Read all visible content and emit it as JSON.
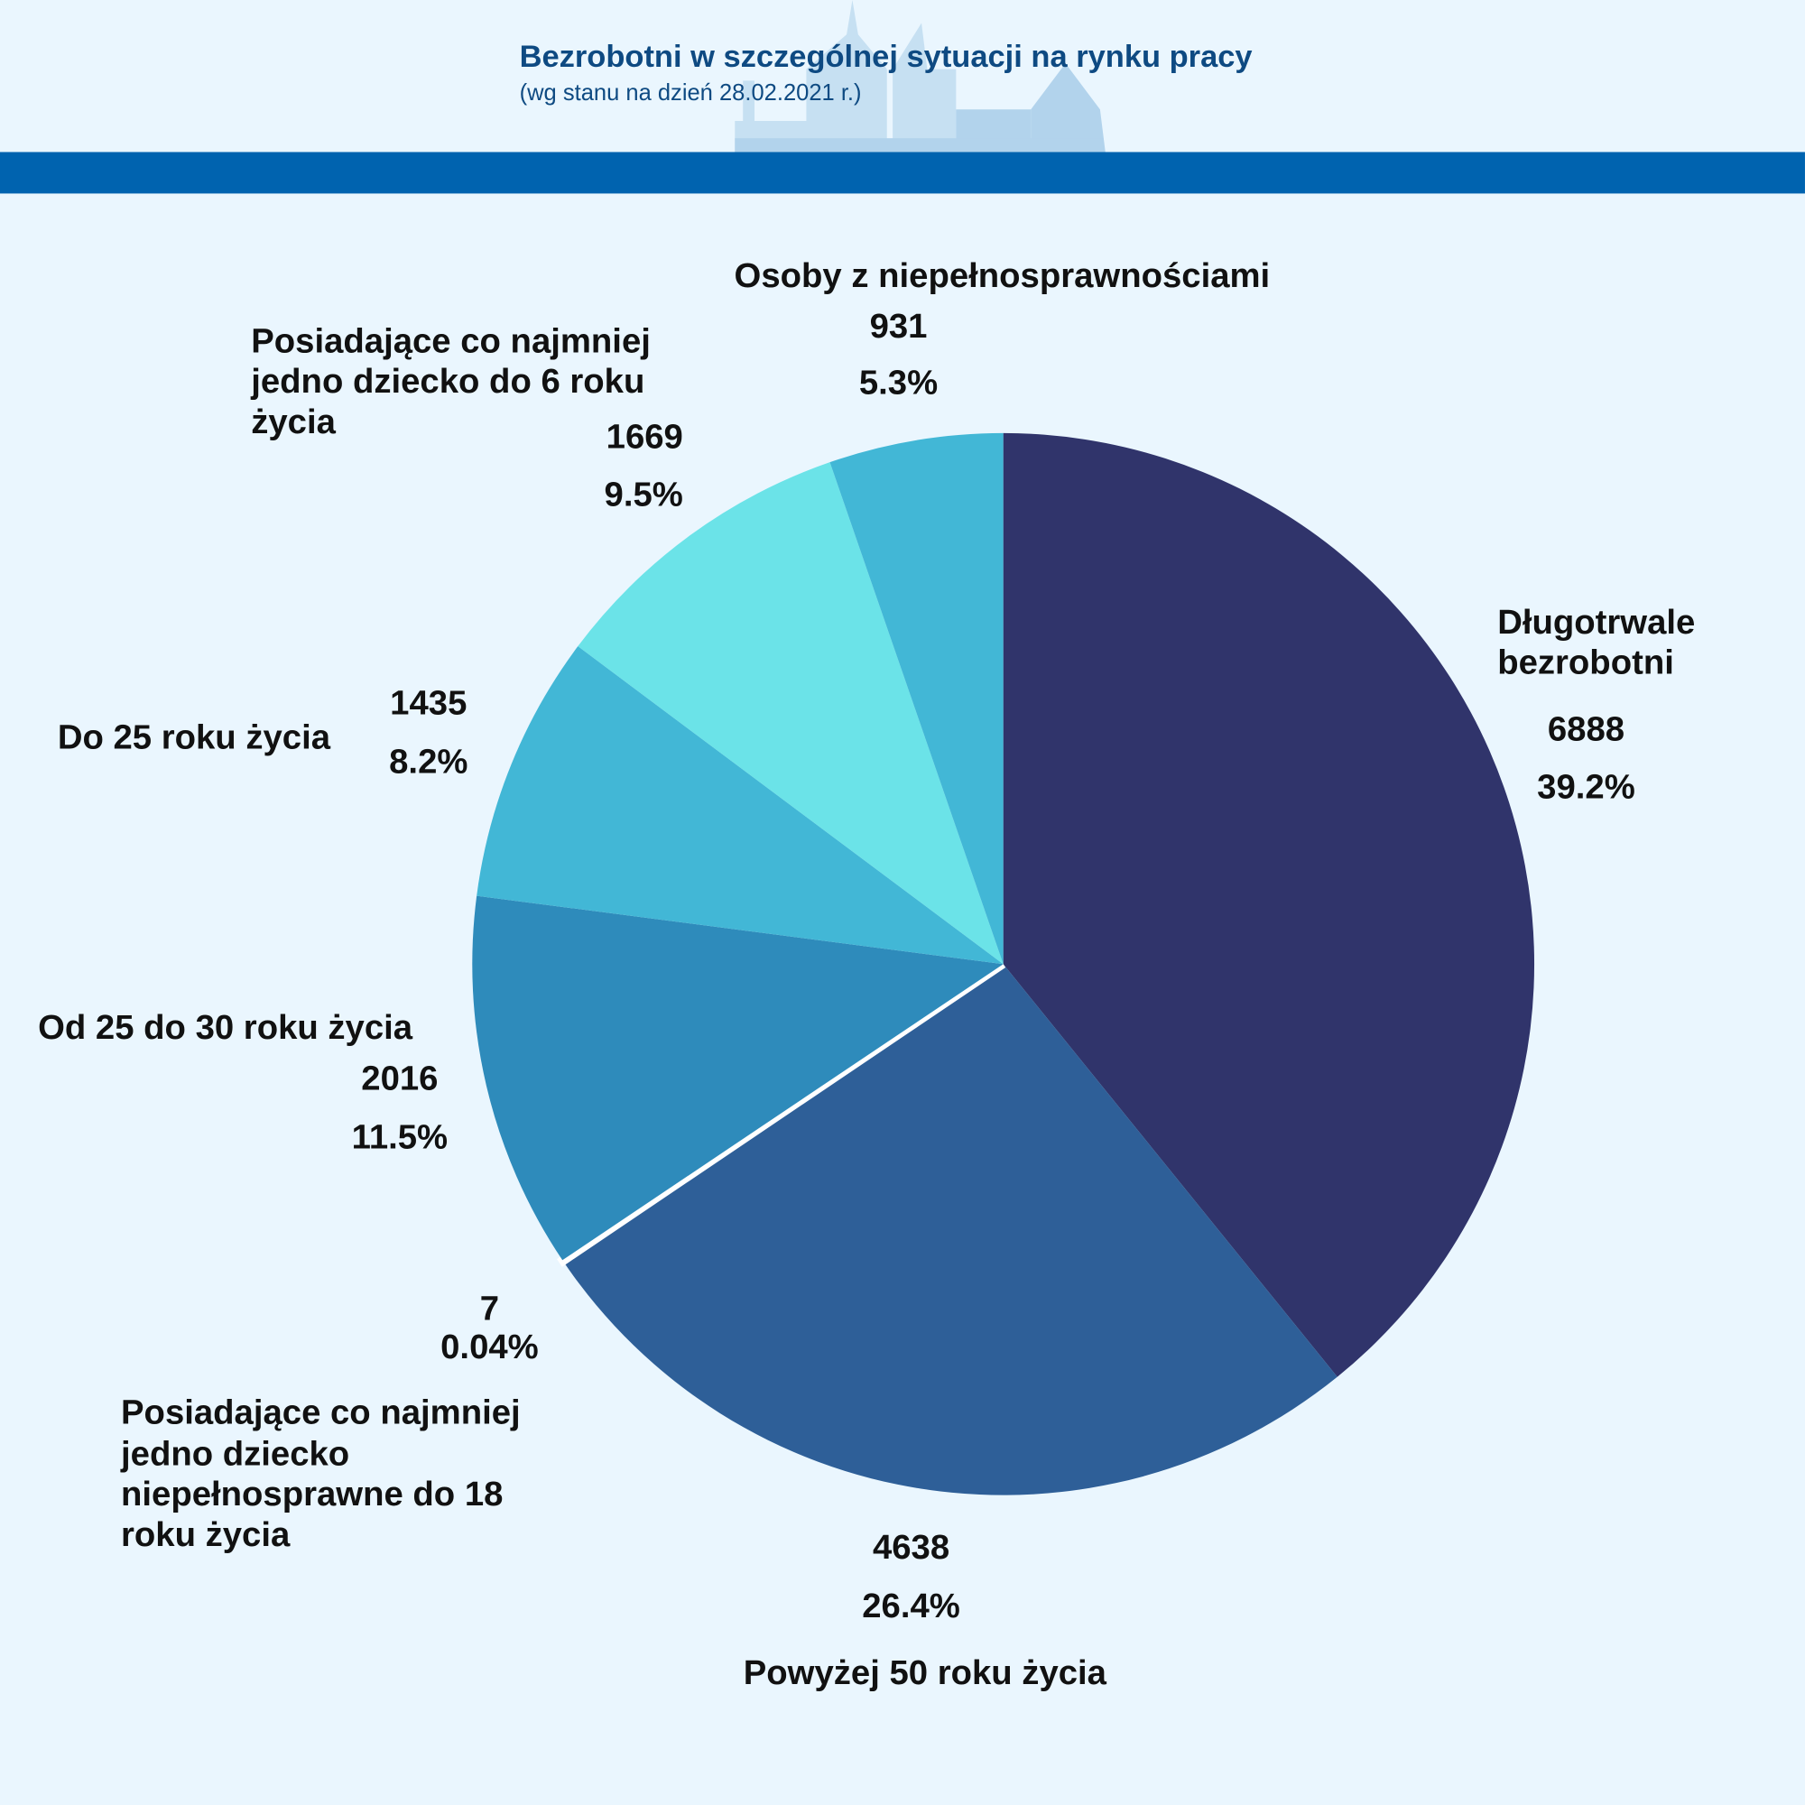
{
  "header": {
    "title": "Bezrobotni w szczególnej sytuacji na rynku pracy",
    "subtitle": "(wg stanu na dzień 28.02.2021 r.)",
    "band_color": "#0063AF"
  },
  "chart_data": {
    "type": "pie",
    "title": "Bezrobotni w szczególnej sytuacji na rynku pracy",
    "subtitle": "(wg stanu na dzień 28.02.2021 r.)",
    "start": "12 o'clock, clockwise",
    "slices": [
      {
        "label": "Długotrwale bezrobotni",
        "value": 6888,
        "percent": "39.2%",
        "color": "#30346B"
      },
      {
        "label": "Powyżej 50 roku życia",
        "value": 4638,
        "percent": "26.4%",
        "color": "#2E5F98"
      },
      {
        "label": "Posiadające co najmniej jedno dziecko niepełnosprawne do 18 roku życia",
        "value": 7,
        "percent": "0.04%",
        "color": "#FFFFFF"
      },
      {
        "label": "Od 25 do 30 roku życia",
        "value": 2016,
        "percent": "11.5%",
        "color": "#2E8BBB"
      },
      {
        "label": "Do 25 roku życia",
        "value": 1435,
        "percent": "8.2%",
        "color": "#42B7D6"
      },
      {
        "label": "Posiadające co najmniej jedno dziecko do 6 roku życia",
        "value": 1669,
        "percent": "9.5%",
        "color": "#6BE3E8"
      },
      {
        "label": "Osoby z niepełnosprawnościami",
        "value": 931,
        "percent": "5.3%",
        "color": "#42B7D6"
      }
    ]
  },
  "labels": {
    "dl": [
      "Długotrwale",
      "bezrobotni"
    ],
    "p50": "Powyżej 50 roku życia",
    "d18": [
      "Posiadające co najmniej",
      "jedno dziecko",
      "niepełnosprawne do 18",
      "roku życia"
    ],
    "o25": "Od 25 do 30 roku życia",
    "d25": "Do 25 roku życia",
    "d6": [
      "Posiadające co najmniej",
      "jedno dziecko do 6 roku",
      "życia"
    ],
    "os": "Osoby z niepełnosprawnościami"
  }
}
